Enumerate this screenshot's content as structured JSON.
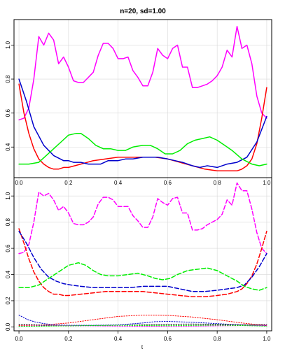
{
  "chart_data": {
    "type": "line",
    "title": "n=20, sd=1.00",
    "xlabel": "t",
    "grid": true,
    "colors": {
      "magenta": "#ff00ff",
      "red": "#ff0000",
      "blue": "#0000cc",
      "green": "#00ee00",
      "black": "#000000",
      "frame": "#000000",
      "grid": "#d8d8d8"
    },
    "x_ticks": [
      "0.0",
      "0.2",
      "0.4",
      "0.6",
      "0.8",
      "1.0"
    ],
    "panels": [
      {
        "name": "top",
        "xlim": [
          -0.02,
          1.02
        ],
        "ylim": [
          0.22,
          1.15
        ],
        "y_ticks": [
          {
            "value": 0.4,
            "label": "0.4"
          },
          {
            "value": 0.6,
            "label": "0.6"
          },
          {
            "value": 0.8,
            "label": "0.8"
          },
          {
            "value": 1.0,
            "label": "1.0"
          }
        ],
        "series": [
          {
            "color": "magenta",
            "dash": "solid",
            "width": 1.5,
            "x": [
              0,
              0.02,
              0.04,
              0.06,
              0.08,
              0.1,
              0.12,
              0.14,
              0.16,
              0.18,
              0.2,
              0.22,
              0.24,
              0.26,
              0.28,
              0.3,
              0.32,
              0.34,
              0.36,
              0.38,
              0.4,
              0.42,
              0.44,
              0.46,
              0.48,
              0.5,
              0.52,
              0.54,
              0.56,
              0.58,
              0.6,
              0.62,
              0.64,
              0.66,
              0.68,
              0.7,
              0.72,
              0.74,
              0.76,
              0.78,
              0.8,
              0.82,
              0.84,
              0.86,
              0.88,
              0.9,
              0.92,
              0.94,
              0.96,
              0.98,
              1.0
            ],
            "y": [
              0.56,
              0.57,
              0.63,
              0.8,
              1.05,
              1.0,
              1.07,
              1.03,
              0.89,
              0.93,
              0.87,
              0.79,
              0.78,
              0.78,
              0.81,
              0.84,
              0.94,
              1.01,
              1.01,
              0.98,
              0.92,
              0.92,
              0.93,
              0.85,
              0.81,
              0.76,
              0.76,
              0.84,
              0.98,
              0.94,
              0.92,
              0.98,
              1.0,
              0.87,
              0.87,
              0.75,
              0.75,
              0.76,
              0.77,
              0.79,
              0.82,
              0.87,
              0.97,
              0.93,
              1.11,
              0.98,
              1.0,
              0.89,
              0.7,
              0.6,
              0.57
            ]
          },
          {
            "color": "red",
            "dash": "solid",
            "width": 1.5,
            "x": [
              0,
              0.02,
              0.04,
              0.06,
              0.08,
              0.1,
              0.12,
              0.14,
              0.16,
              0.18,
              0.2,
              0.25,
              0.3,
              0.35,
              0.4,
              0.45,
              0.5,
              0.55,
              0.6,
              0.65,
              0.7,
              0.75,
              0.8,
              0.84,
              0.88,
              0.9,
              0.92,
              0.94,
              0.96,
              0.98,
              1.0
            ],
            "y": [
              0.77,
              0.6,
              0.48,
              0.39,
              0.33,
              0.3,
              0.28,
              0.27,
              0.27,
              0.28,
              0.28,
              0.3,
              0.32,
              0.33,
              0.34,
              0.34,
              0.34,
              0.34,
              0.33,
              0.31,
              0.29,
              0.27,
              0.26,
              0.26,
              0.26,
              0.27,
              0.29,
              0.33,
              0.42,
              0.57,
              0.75
            ]
          },
          {
            "color": "blue",
            "dash": "solid",
            "width": 1.5,
            "x": [
              0,
              0.03,
              0.06,
              0.1,
              0.14,
              0.18,
              0.2,
              0.22,
              0.25,
              0.28,
              0.3,
              0.33,
              0.36,
              0.4,
              0.43,
              0.46,
              0.5,
              0.53,
              0.56,
              0.6,
              0.63,
              0.66,
              0.7,
              0.73,
              0.76,
              0.8,
              0.84,
              0.88,
              0.92,
              0.96,
              1.0
            ],
            "y": [
              0.8,
              0.67,
              0.52,
              0.41,
              0.35,
              0.32,
              0.32,
              0.31,
              0.31,
              0.3,
              0.3,
              0.3,
              0.32,
              0.32,
              0.33,
              0.33,
              0.34,
              0.34,
              0.34,
              0.33,
              0.32,
              0.31,
              0.29,
              0.28,
              0.29,
              0.28,
              0.3,
              0.31,
              0.34,
              0.43,
              0.58
            ]
          },
          {
            "color": "green",
            "dash": "solid",
            "width": 1.5,
            "x": [
              0,
              0.04,
              0.08,
              0.11,
              0.14,
              0.17,
              0.2,
              0.23,
              0.25,
              0.28,
              0.31,
              0.34,
              0.37,
              0.4,
              0.43,
              0.46,
              0.5,
              0.53,
              0.56,
              0.59,
              0.62,
              0.65,
              0.68,
              0.71,
              0.74,
              0.77,
              0.8,
              0.83,
              0.86,
              0.9,
              0.94,
              0.97,
              1.0
            ],
            "y": [
              0.3,
              0.3,
              0.31,
              0.35,
              0.39,
              0.43,
              0.47,
              0.48,
              0.48,
              0.45,
              0.41,
              0.39,
              0.39,
              0.38,
              0.38,
              0.4,
              0.41,
              0.41,
              0.39,
              0.36,
              0.36,
              0.38,
              0.42,
              0.44,
              0.45,
              0.46,
              0.44,
              0.41,
              0.38,
              0.33,
              0.3,
              0.29,
              0.3
            ]
          }
        ]
      },
      {
        "name": "bottom",
        "xlim": [
          -0.02,
          1.02
        ],
        "ylim": [
          -0.03,
          1.14
        ],
        "y_ticks": [
          {
            "value": 0.0,
            "label": "0.0"
          },
          {
            "value": 0.2,
            "label": "0.2"
          },
          {
            "value": 0.4,
            "label": "0.4"
          },
          {
            "value": 0.6,
            "label": "0.6"
          },
          {
            "value": 0.8,
            "label": "0.8"
          },
          {
            "value": 1.0,
            "label": "1.0"
          }
        ],
        "series": [
          {
            "color": "magenta",
            "dash": "dashed",
            "width": 1.5,
            "x": [
              0,
              0.02,
              0.04,
              0.06,
              0.08,
              0.1,
              0.12,
              0.14,
              0.16,
              0.18,
              0.2,
              0.22,
              0.24,
              0.26,
              0.28,
              0.3,
              0.32,
              0.34,
              0.36,
              0.38,
              0.4,
              0.42,
              0.44,
              0.46,
              0.48,
              0.5,
              0.52,
              0.54,
              0.56,
              0.58,
              0.6,
              0.62,
              0.64,
              0.66,
              0.68,
              0.7,
              0.72,
              0.74,
              0.76,
              0.78,
              0.8,
              0.82,
              0.84,
              0.86,
              0.88,
              0.9,
              0.92,
              0.94,
              0.96,
              0.98,
              1.0
            ],
            "y": [
              0.56,
              0.57,
              0.63,
              0.8,
              1.03,
              1.0,
              1.02,
              0.97,
              0.89,
              0.92,
              0.87,
              0.79,
              0.78,
              0.78,
              0.8,
              0.84,
              0.94,
              0.99,
              0.99,
              0.97,
              0.92,
              0.92,
              0.92,
              0.85,
              0.81,
              0.76,
              0.76,
              0.84,
              0.98,
              0.95,
              0.93,
              0.98,
              0.99,
              0.87,
              0.87,
              0.74,
              0.74,
              0.75,
              0.78,
              0.8,
              0.82,
              0.86,
              0.97,
              0.93,
              1.1,
              1.04,
              1.04,
              0.9,
              0.72,
              0.6,
              0.56
            ]
          },
          {
            "color": "red",
            "dash": "dashed",
            "width": 1.5,
            "x": [
              0,
              0.02,
              0.04,
              0.06,
              0.08,
              0.1,
              0.12,
              0.14,
              0.16,
              0.18,
              0.2,
              0.25,
              0.3,
              0.35,
              0.4,
              0.45,
              0.5,
              0.55,
              0.6,
              0.65,
              0.7,
              0.75,
              0.8,
              0.84,
              0.88,
              0.9,
              0.92,
              0.94,
              0.96,
              0.98,
              1.0
            ],
            "y": [
              0.75,
              0.64,
              0.52,
              0.42,
              0.35,
              0.3,
              0.27,
              0.25,
              0.25,
              0.24,
              0.24,
              0.25,
              0.26,
              0.27,
              0.27,
              0.27,
              0.27,
              0.26,
              0.25,
              0.24,
              0.23,
              0.23,
              0.24,
              0.25,
              0.27,
              0.29,
              0.33,
              0.39,
              0.48,
              0.6,
              0.73
            ]
          },
          {
            "color": "blue",
            "dash": "dashed",
            "width": 1.5,
            "x": [
              0,
              0.03,
              0.06,
              0.09,
              0.12,
              0.15,
              0.18,
              0.21,
              0.25,
              0.3,
              0.35,
              0.4,
              0.45,
              0.5,
              0.55,
              0.6,
              0.65,
              0.7,
              0.75,
              0.8,
              0.84,
              0.88,
              0.91,
              0.94,
              0.97,
              1.0
            ],
            "y": [
              0.73,
              0.64,
              0.53,
              0.44,
              0.38,
              0.35,
              0.33,
              0.32,
              0.31,
              0.3,
              0.3,
              0.3,
              0.3,
              0.31,
              0.31,
              0.31,
              0.29,
              0.27,
              0.27,
              0.28,
              0.29,
              0.3,
              0.32,
              0.38,
              0.46,
              0.56
            ]
          },
          {
            "color": "green",
            "dash": "dashed",
            "width": 1.5,
            "x": [
              0,
              0.04,
              0.08,
              0.12,
              0.16,
              0.2,
              0.24,
              0.27,
              0.3,
              0.33,
              0.36,
              0.4,
              0.44,
              0.48,
              0.52,
              0.55,
              0.58,
              0.61,
              0.64,
              0.68,
              0.72,
              0.76,
              0.8,
              0.84,
              0.88,
              0.91,
              0.94,
              0.97,
              1.0
            ],
            "y": [
              0.3,
              0.3,
              0.32,
              0.37,
              0.42,
              0.47,
              0.49,
              0.47,
              0.43,
              0.4,
              0.39,
              0.39,
              0.4,
              0.41,
              0.39,
              0.37,
              0.36,
              0.37,
              0.4,
              0.43,
              0.44,
              0.45,
              0.43,
              0.39,
              0.35,
              0.31,
              0.29,
              0.28,
              0.3
            ]
          },
          {
            "color": "red",
            "dash": "dotted",
            "width": 1,
            "x": [
              0,
              0.1,
              0.2,
              0.3,
              0.4,
              0.5,
              0.55,
              0.6,
              0.7,
              0.8,
              0.9,
              1.0
            ],
            "y": [
              0.01,
              0.015,
              0.03,
              0.055,
              0.08,
              0.09,
              0.09,
              0.088,
              0.075,
              0.055,
              0.03,
              0.01
            ]
          },
          {
            "color": "blue",
            "dash": "dotted",
            "width": 1,
            "x": [
              0,
              0.03,
              0.06,
              0.1,
              0.15,
              0.2,
              0.3,
              0.4,
              0.5,
              0.55,
              0.6,
              0.7,
              0.8,
              0.9,
              0.95,
              1.0
            ],
            "y": [
              0.09,
              0.06,
              0.04,
              0.025,
              0.015,
              0.012,
              0.012,
              0.015,
              0.03,
              0.04,
              0.042,
              0.035,
              0.025,
              0.015,
              0.01,
              0.008
            ]
          },
          {
            "color": "black",
            "dash": "dotted",
            "width": 1,
            "x": [
              0,
              0.1,
              0.2,
              0.3,
              0.4,
              0.5,
              0.6,
              0.7,
              0.8,
              0.9,
              1.0
            ],
            "y": [
              0.02,
              0.012,
              0.008,
              0.01,
              0.012,
              0.015,
              0.02,
              0.022,
              0.02,
              0.015,
              0.018
            ]
          },
          {
            "color": "magenta",
            "dash": "dotted",
            "width": 1,
            "x": [
              0,
              0.1,
              0.2,
              0.3,
              0.4,
              0.5,
              0.6,
              0.7,
              0.8,
              0.9,
              1.0
            ],
            "y": [
              0.005,
              0.008,
              0.01,
              0.008,
              0.006,
              0.004,
              0.005,
              0.006,
              0.008,
              0.01,
              0.012
            ]
          },
          {
            "color": "green",
            "dash": "dotted",
            "width": 1,
            "x": [
              0,
              0.1,
              0.2,
              0.3,
              0.4,
              0.5,
              0.6,
              0.7,
              0.8,
              0.9,
              1.0
            ],
            "y": [
              0.004,
              0.006,
              0.008,
              0.01,
              0.012,
              0.01,
              0.009,
              0.011,
              0.013,
              0.01,
              0.006
            ]
          }
        ]
      }
    ]
  }
}
